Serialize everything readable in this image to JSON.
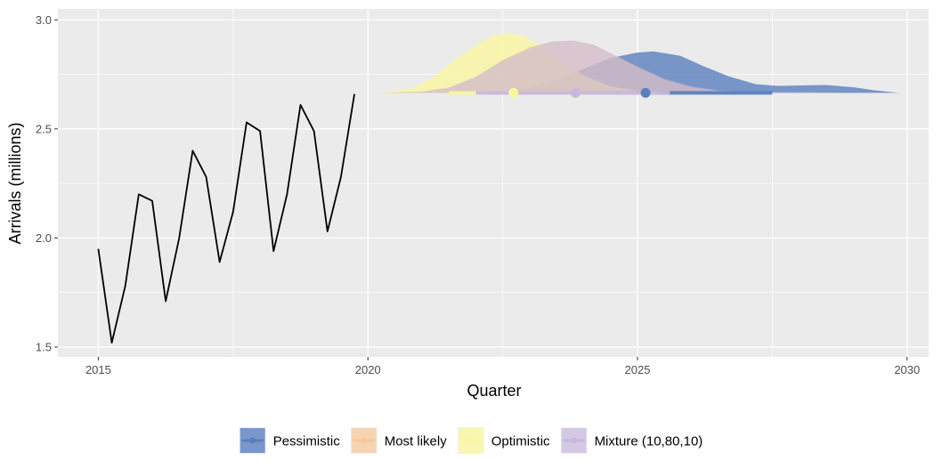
{
  "chart_data": {
    "type": "line",
    "xlabel": "Quarter",
    "ylabel": "Arrivals (millions)",
    "xlim": [
      2014.25,
      2030.4
    ],
    "ylim": [
      1.455,
      3.05
    ],
    "x_ticks": [
      2015,
      2020,
      2025,
      2030
    ],
    "x_tick_labels": [
      "2015",
      "2020",
      "2025",
      "2030"
    ],
    "y_ticks": [
      1.5,
      2.0,
      2.5,
      3.0
    ],
    "y_tick_labels": [
      "1.5",
      "2.0",
      "2.5",
      "3.0"
    ],
    "grid": true,
    "background": "#ebebeb",
    "history": {
      "x": [
        2015.0,
        2015.25,
        2015.5,
        2015.75,
        2016.0,
        2016.25,
        2016.5,
        2016.75,
        2017.0,
        2017.25,
        2017.5,
        2017.75,
        2018.0,
        2018.25,
        2018.5,
        2018.75,
        2019.0,
        2019.25,
        2019.5,
        2019.75
      ],
      "y": [
        1.95,
        1.52,
        1.78,
        2.2,
        2.17,
        1.71,
        2.0,
        2.4,
        2.28,
        1.89,
        2.12,
        2.53,
        2.49,
        1.94,
        2.2,
        2.61,
        2.49,
        2.03,
        2.28,
        2.66
      ],
      "color": "#000000"
    },
    "baseline_y": 2.665,
    "density_scale": 1.0,
    "series": [
      {
        "name": "Pessimistic",
        "color": "#5a7fbe",
        "fill_opacity": 0.8,
        "density": {
          "x": [
            2020.2,
            2021.0,
            2022.0,
            2022.5,
            2023.0,
            2023.5,
            2024.0,
            2024.5,
            2025.0,
            2025.3,
            2025.8,
            2026.2,
            2026.7,
            2027.2,
            2027.6,
            2028.0,
            2028.5,
            2029.0,
            2029.4,
            2029.85
          ],
          "height": [
            0.0,
            0.0,
            0.002,
            0.008,
            0.025,
            0.06,
            0.11,
            0.16,
            0.185,
            0.19,
            0.17,
            0.125,
            0.075,
            0.04,
            0.032,
            0.034,
            0.036,
            0.026,
            0.012,
            0.0
          ]
        },
        "point": 2025.15,
        "interval": [
          2024.0,
          2027.5
        ]
      },
      {
        "name": "Most likely",
        "color": "#f8c896",
        "fill_opacity": 0.55,
        "density": {
          "x": [
            2020.2,
            2021.0,
            2021.5,
            2022.0,
            2022.5,
            2023.0,
            2023.4,
            2023.8,
            2024.2,
            2024.6,
            2025.0,
            2025.5,
            2026.0,
            2026.5,
            2027.0
          ],
          "height": [
            0.0,
            0.005,
            0.02,
            0.07,
            0.15,
            0.21,
            0.235,
            0.24,
            0.22,
            0.17,
            0.12,
            0.06,
            0.025,
            0.008,
            0.0
          ]
        },
        "point": 2023.85,
        "interval": [
          2022.2,
          2025.4
        ]
      },
      {
        "name": "Optimistic",
        "color": "#faf6a0",
        "fill_opacity": 0.8,
        "density": {
          "x": [
            2020.2,
            2020.8,
            2021.2,
            2021.6,
            2022.0,
            2022.3,
            2022.6,
            2022.9,
            2023.3,
            2023.7,
            2024.0,
            2024.5,
            2025.0,
            2025.6
          ],
          "height": [
            0.0,
            0.02,
            0.07,
            0.15,
            0.22,
            0.26,
            0.275,
            0.26,
            0.2,
            0.13,
            0.08,
            0.03,
            0.01,
            0.0
          ]
        },
        "point": 2022.7,
        "interval": [
          2021.5,
          2024.0
        ]
      },
      {
        "name": "Mixture (10,80,10)",
        "color": "#c7b8e0",
        "fill_opacity": 0.55,
        "density": {
          "x": [
            2020.2,
            2021.0,
            2021.5,
            2022.0,
            2022.5,
            2023.0,
            2023.4,
            2023.8,
            2024.2,
            2024.6,
            2025.0,
            2025.5,
            2026.0,
            2026.5,
            2027.0,
            2027.5,
            2028.0,
            2028.5,
            2029.0
          ],
          "height": [
            0.0,
            0.006,
            0.025,
            0.075,
            0.15,
            0.205,
            0.235,
            0.24,
            0.22,
            0.17,
            0.12,
            0.065,
            0.03,
            0.012,
            0.006,
            0.005,
            0.004,
            0.002,
            0.0
          ]
        },
        "point": 2023.85,
        "interval": [
          2022.0,
          2025.6
        ]
      }
    ],
    "draw_order": [
      "Pessimistic",
      "Optimistic",
      "Most likely",
      "Mixture (10,80,10)"
    ],
    "legend": {
      "position": "bottom",
      "items": [
        "Pessimistic",
        "Most likely",
        "Optimistic",
        "Mixture (10,80,10)"
      ]
    }
  }
}
